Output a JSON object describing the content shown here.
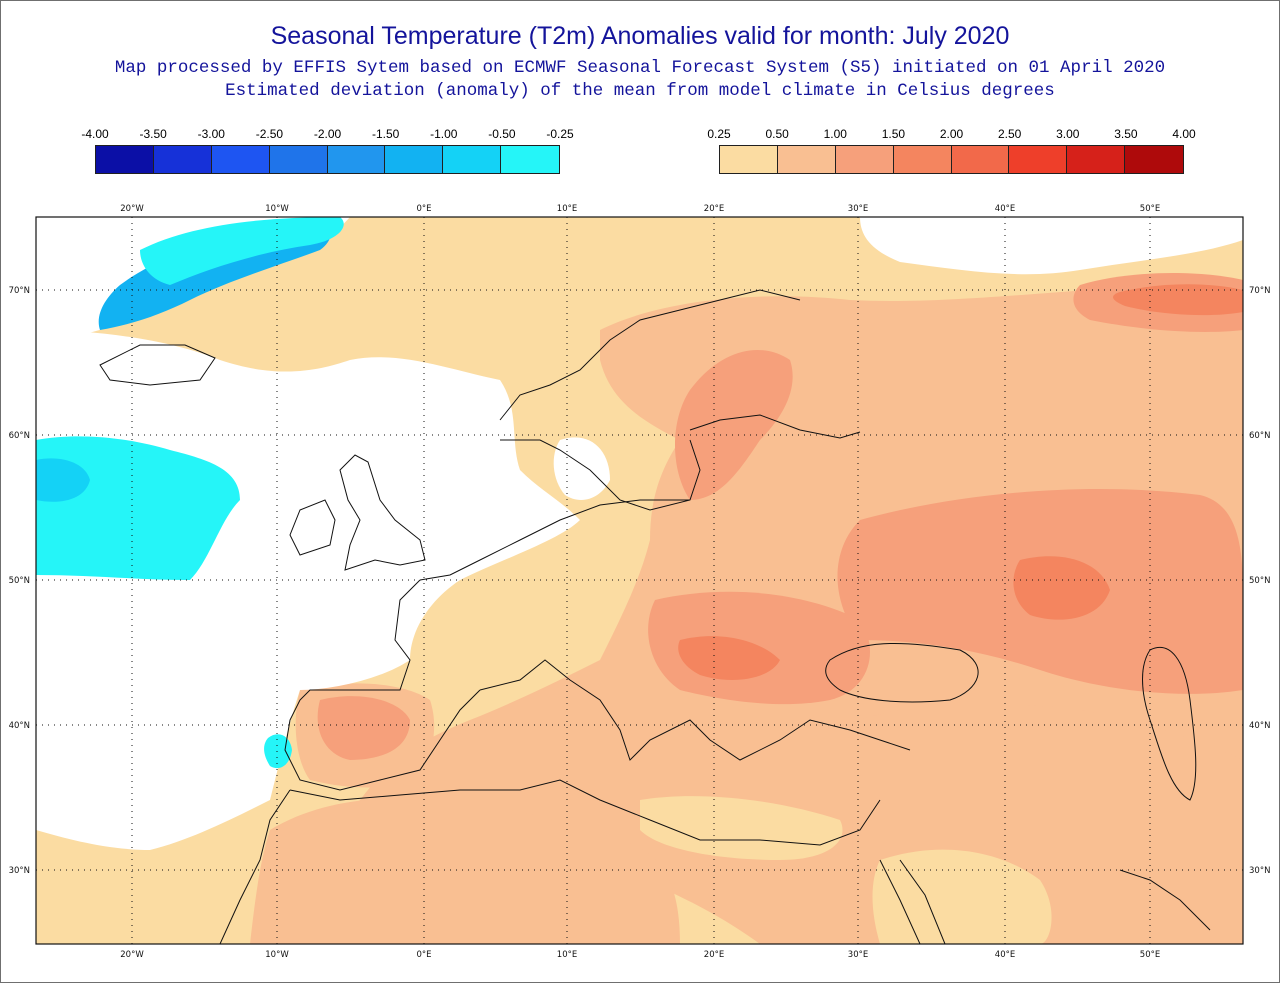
{
  "title": "Seasonal Temperature (T2m) Anomalies valid for month: July 2020",
  "subtitle_1": "Map processed by EFFIS Sytem based on ECMWF Seasonal Forecast System (S5) initiated on 01 April 2020",
  "subtitle_2": "Estimated deviation (anomaly) of the mean from model climate in Celsius degrees",
  "legend_negative": {
    "ticks": [
      "-4.00",
      "-3.50",
      "-3.00",
      "-2.50",
      "-2.00",
      "-1.50",
      "-1.00",
      "-0.50",
      "-0.25"
    ],
    "colors": [
      "#0b0fa6",
      "#1631d8",
      "#1e55f2",
      "#1f74ea",
      "#2196ee",
      "#12b2f2",
      "#14d2f6",
      "#25f5f8"
    ]
  },
  "legend_positive": {
    "ticks": [
      "0.25",
      "0.50",
      "1.00",
      "1.50",
      "2.00",
      "2.50",
      "3.00",
      "3.50",
      "4.00"
    ],
    "colors": [
      "#fbdca2",
      "#f9bf92",
      "#f6a07b",
      "#f4855f",
      "#f2694a",
      "#ee3f2a",
      "#d6211a",
      "#ae0a0b"
    ]
  },
  "map": {
    "lon_labels": [
      "20°W",
      "10°W",
      "0°E",
      "10°E",
      "20°E",
      "30°E",
      "40°E",
      "50°E"
    ],
    "lat_labels": [
      "70°N",
      "60°N",
      "50°N",
      "40°N",
      "30°N"
    ],
    "anomaly_classes": {
      "no_signal": "#ffffff",
      "light_blue": "#14d2f6",
      "blue": "#12b2f2",
      "cyan": "#25f5f8",
      "pale_orange": "#fbdca2",
      "orange": "#f9bf92",
      "dark_orange": "#f6a07b",
      "red_orange": "#f4855f"
    }
  }
}
